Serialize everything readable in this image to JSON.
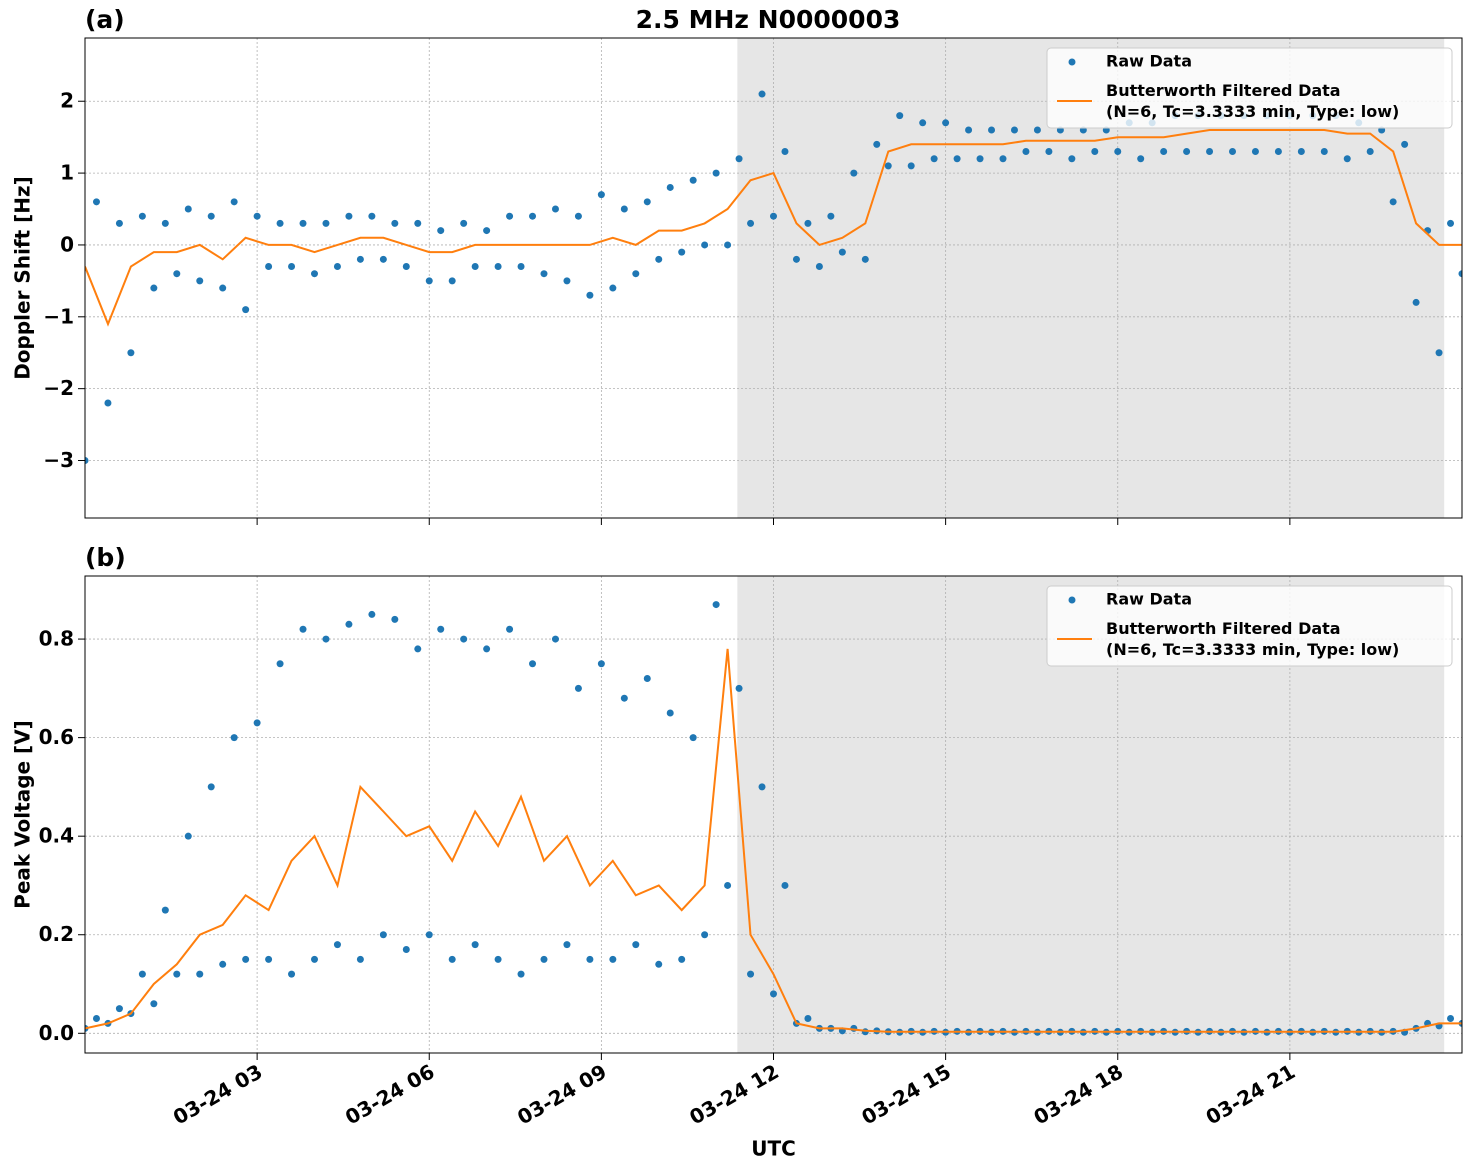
{
  "chart_data": [
    {
      "type": "line",
      "panel_label": "(a)",
      "title": "2.5 MHz N0000003",
      "ylabel": "Doppler Shift [Hz]",
      "xlim": [
        0,
        24
      ],
      "xticks": [
        3,
        6,
        9,
        12,
        15,
        18,
        21
      ],
      "ylim": [
        -3.8,
        2.88
      ],
      "yticks": [
        {
          "value": -3,
          "label": "−3"
        },
        {
          "value": -2,
          "label": "−2"
        },
        {
          "value": -1,
          "label": "−1"
        },
        0,
        1,
        2
      ],
      "grid": true,
      "legend": "upper right",
      "span": [
        11.37,
        23.69
      ],
      "series": [
        {
          "name": "Raw Data",
          "type": "scatter",
          "color": "#1f77b4",
          "x": [
            0,
            0.2,
            0.4,
            0.6,
            0.8,
            1,
            1.2,
            1.4,
            1.6,
            1.8,
            2,
            2.2,
            2.4,
            2.6,
            2.8,
            3,
            3.2,
            3.4,
            3.6,
            3.8,
            4,
            4.2,
            4.4,
            4.6,
            4.8,
            5,
            5.2,
            5.4,
            5.6,
            5.8,
            6,
            6.2,
            6.4,
            6.6,
            6.8,
            7,
            7.2,
            7.4,
            7.6,
            7.8,
            8,
            8.2,
            8.4,
            8.6,
            8.8,
            9,
            9.2,
            9.4,
            9.6,
            9.8,
            10,
            10.2,
            10.4,
            10.6,
            10.8,
            11,
            11.2,
            11.4,
            11.6,
            11.8,
            12,
            12.2,
            12.4,
            12.6,
            12.8,
            13,
            13.2,
            13.4,
            13.6,
            13.8,
            14,
            14.2,
            14.4,
            14.6,
            14.8,
            15,
            15.2,
            15.4,
            15.6,
            15.8,
            16,
            16.2,
            16.4,
            16.6,
            16.8,
            17,
            17.2,
            17.4,
            17.6,
            17.8,
            18,
            18.2,
            18.4,
            18.6,
            18.8,
            19,
            19.2,
            19.4,
            19.6,
            19.8,
            20,
            20.2,
            20.4,
            20.6,
            20.8,
            21,
            21.2,
            21.4,
            21.6,
            21.8,
            22,
            22.2,
            22.4,
            22.6,
            22.8,
            23,
            23.2,
            23.4,
            23.6,
            23.8,
            24
          ],
          "values": [
            -3,
            0.6,
            -2.2,
            0.3,
            -1.5,
            0.4,
            -0.6,
            0.3,
            -0.4,
            0.5,
            -0.5,
            0.4,
            -0.6,
            0.6,
            -0.9,
            0.4,
            -0.3,
            0.3,
            -0.3,
            0.3,
            -0.4,
            0.3,
            -0.3,
            0.4,
            -0.2,
            0.4,
            -0.2,
            0.3,
            -0.3,
            0.3,
            -0.5,
            0.2,
            -0.5,
            0.3,
            -0.3,
            0.2,
            -0.3,
            0.4,
            -0.3,
            0.4,
            -0.4,
            0.5,
            -0.5,
            0.4,
            -0.7,
            0.7,
            -0.6,
            0.5,
            -0.4,
            0.6,
            -0.2,
            0.8,
            -0.1,
            0.9,
            0,
            1,
            0,
            1.2,
            0.3,
            2.1,
            0.4,
            1.3,
            -0.2,
            0.3,
            -0.3,
            0.4,
            -0.1,
            1,
            -0.2,
            1.4,
            1.1,
            1.8,
            1.1,
            1.7,
            1.2,
            1.7,
            1.2,
            1.6,
            1.2,
            1.6,
            1.2,
            1.6,
            1.3,
            1.6,
            1.3,
            1.6,
            1.2,
            1.6,
            1.3,
            1.6,
            1.3,
            1.7,
            1.2,
            1.7,
            1.3,
            1.8,
            1.3,
            1.8,
            1.3,
            1.8,
            1.3,
            1.8,
            1.3,
            1.8,
            1.3,
            1.8,
            1.3,
            1.8,
            1.3,
            1.8,
            1.2,
            1.7,
            1.3,
            1.6,
            0.6,
            1.4,
            -0.8,
            0.2,
            -1.5,
            0.3,
            -0.4
          ]
        },
        {
          "name": "Butterworth Filtered Data\n(N=6, Tc=3.3333 min, Type: low)",
          "type": "line",
          "color": "#ff7f0e",
          "x": [
            0,
            0.4,
            0.8,
            1.2,
            1.6,
            2,
            2.4,
            2.8,
            3.2,
            3.6,
            4,
            4.4,
            4.8,
            5.2,
            5.6,
            6,
            6.4,
            6.8,
            7.2,
            7.6,
            8,
            8.4,
            8.8,
            9.2,
            9.6,
            10,
            10.4,
            10.8,
            11.2,
            11.6,
            12,
            12.4,
            12.8,
            13.2,
            13.6,
            14,
            14.4,
            14.8,
            15.2,
            15.6,
            16,
            16.4,
            16.8,
            17.2,
            17.6,
            18,
            18.4,
            18.8,
            19.2,
            19.6,
            20,
            20.4,
            20.8,
            21.2,
            21.6,
            22,
            22.4,
            22.8,
            23.2,
            23.6,
            24
          ],
          "values": [
            -0.3,
            -1.1,
            -0.3,
            -0.1,
            -0.1,
            0,
            -0.2,
            0.1,
            0,
            0,
            -0.1,
            0,
            0.1,
            0.1,
            0,
            -0.1,
            -0.1,
            0,
            0,
            0,
            0,
            0,
            0,
            0.1,
            0,
            0.2,
            0.2,
            0.3,
            0.5,
            0.9,
            1,
            0.3,
            0,
            0.1,
            0.3,
            1.3,
            1.4,
            1.4,
            1.4,
            1.4,
            1.4,
            1.45,
            1.45,
            1.45,
            1.45,
            1.5,
            1.5,
            1.5,
            1.55,
            1.6,
            1.6,
            1.6,
            1.6,
            1.6,
            1.6,
            1.55,
            1.55,
            1.3,
            0.3,
            0,
            0
          ]
        }
      ]
    },
    {
      "type": "line",
      "panel_label": "(b)",
      "ylabel": "Peak Voltage [V]",
      "xlabel": "UTC",
      "xlim": [
        0,
        24
      ],
      "xticks": [
        {
          "value": 3,
          "label": "03-24 03"
        },
        {
          "value": 6,
          "label": "03-24 06"
        },
        {
          "value": 9,
          "label": "03-24 09"
        },
        {
          "value": 12,
          "label": "03-24 12"
        },
        {
          "value": 15,
          "label": "03-24 15"
        },
        {
          "value": 18,
          "label": "03-24 18"
        },
        {
          "value": 21,
          "label": "03-24 21"
        }
      ],
      "ylim": [
        -0.04,
        0.928
      ],
      "yticks": [
        {
          "value": 0,
          "label": "0.0"
        },
        0.2,
        0.4,
        0.6,
        0.8
      ],
      "grid": true,
      "legend": "upper right",
      "span": [
        11.37,
        23.69
      ],
      "series": [
        {
          "name": "Raw Data",
          "type": "scatter",
          "color": "#1f77b4",
          "x": [
            0,
            0.2,
            0.4,
            0.6,
            0.8,
            1,
            1.2,
            1.4,
            1.6,
            1.8,
            2,
            2.2,
            2.4,
            2.6,
            2.8,
            3,
            3.2,
            3.4,
            3.6,
            3.8,
            4,
            4.2,
            4.4,
            4.6,
            4.8,
            5,
            5.2,
            5.4,
            5.6,
            5.8,
            6,
            6.2,
            6.4,
            6.6,
            6.8,
            7,
            7.2,
            7.4,
            7.6,
            7.8,
            8,
            8.2,
            8.4,
            8.6,
            8.8,
            9,
            9.2,
            9.4,
            9.6,
            9.8,
            10,
            10.2,
            10.4,
            10.6,
            10.8,
            11,
            11.2,
            11.4,
            11.6,
            11.8,
            12,
            12.2,
            12.4,
            12.6,
            12.8,
            13,
            13.2,
            13.4,
            13.6,
            13.8,
            14,
            14.2,
            14.4,
            14.6,
            14.8,
            15,
            15.2,
            15.4,
            15.6,
            15.8,
            16,
            16.2,
            16.4,
            16.6,
            16.8,
            17,
            17.2,
            17.4,
            17.6,
            17.8,
            18,
            18.2,
            18.4,
            18.6,
            18.8,
            19,
            19.2,
            19.4,
            19.6,
            19.8,
            20,
            20.2,
            20.4,
            20.6,
            20.8,
            21,
            21.2,
            21.4,
            21.6,
            21.8,
            22,
            22.2,
            22.4,
            22.6,
            22.8,
            23,
            23.2,
            23.4,
            23.6,
            23.8,
            24
          ],
          "values": [
            0.01,
            0.03,
            0.02,
            0.05,
            0.04,
            0.12,
            0.06,
            0.25,
            0.12,
            0.4,
            0.12,
            0.5,
            0.14,
            0.6,
            0.15,
            0.63,
            0.15,
            0.75,
            0.12,
            0.82,
            0.15,
            0.8,
            0.18,
            0.83,
            0.15,
            0.85,
            0.2,
            0.84,
            0.17,
            0.78,
            0.2,
            0.82,
            0.15,
            0.8,
            0.18,
            0.78,
            0.15,
            0.82,
            0.12,
            0.75,
            0.15,
            0.8,
            0.18,
            0.7,
            0.15,
            0.75,
            0.15,
            0.68,
            0.18,
            0.72,
            0.14,
            0.65,
            0.15,
            0.6,
            0.2,
            0.87,
            0.3,
            0.7,
            0.12,
            0.5,
            0.08,
            0.3,
            0.02,
            0.03,
            0.01,
            0.01,
            0.005,
            0.01,
            0.003,
            0.005,
            0.003,
            0.002,
            0.004,
            0.002,
            0.004,
            0.002,
            0.004,
            0.002,
            0.004,
            0.002,
            0.004,
            0.002,
            0.004,
            0.002,
            0.004,
            0.002,
            0.004,
            0.002,
            0.004,
            0.002,
            0.004,
            0.002,
            0.004,
            0.002,
            0.004,
            0.002,
            0.004,
            0.002,
            0.004,
            0.002,
            0.004,
            0.002,
            0.004,
            0.002,
            0.004,
            0.002,
            0.004,
            0.002,
            0.004,
            0.002,
            0.004,
            0.002,
            0.004,
            0.002,
            0.004,
            0.002,
            0.01,
            0.02,
            0.015,
            0.03,
            0.02
          ]
        },
        {
          "name": "Butterworth Filtered Data\n(N=6, Tc=3.3333 min, Type: low)",
          "type": "line",
          "color": "#ff7f0e",
          "x": [
            0,
            0.4,
            0.8,
            1.2,
            1.6,
            2,
            2.4,
            2.8,
            3.2,
            3.6,
            4,
            4.4,
            4.8,
            5.2,
            5.6,
            6,
            6.4,
            6.8,
            7.2,
            7.6,
            8,
            8.4,
            8.8,
            9.2,
            9.6,
            10,
            10.4,
            10.8,
            11.2,
            11.6,
            12,
            12.4,
            12.8,
            13.2,
            13.6,
            14,
            14.4,
            14.8,
            15.2,
            15.6,
            16,
            16.4,
            16.8,
            17.2,
            17.6,
            18,
            18.4,
            18.8,
            19.2,
            19.6,
            20,
            20.4,
            20.8,
            21.2,
            21.6,
            22,
            22.4,
            22.8,
            23.2,
            23.6,
            24
          ],
          "values": [
            0.01,
            0.02,
            0.04,
            0.1,
            0.14,
            0.2,
            0.22,
            0.28,
            0.25,
            0.35,
            0.4,
            0.3,
            0.5,
            0.45,
            0.4,
            0.42,
            0.35,
            0.45,
            0.38,
            0.48,
            0.35,
            0.4,
            0.3,
            0.35,
            0.28,
            0.3,
            0.25,
            0.3,
            0.78,
            0.2,
            0.12,
            0.02,
            0.01,
            0.01,
            0.005,
            0.003,
            0.003,
            0.003,
            0.003,
            0.003,
            0.003,
            0.003,
            0.003,
            0.003,
            0.003,
            0.003,
            0.003,
            0.003,
            0.003,
            0.003,
            0.003,
            0.003,
            0.003,
            0.003,
            0.003,
            0.003,
            0.003,
            0.003,
            0.01,
            0.02,
            0.02
          ]
        }
      ]
    }
  ]
}
